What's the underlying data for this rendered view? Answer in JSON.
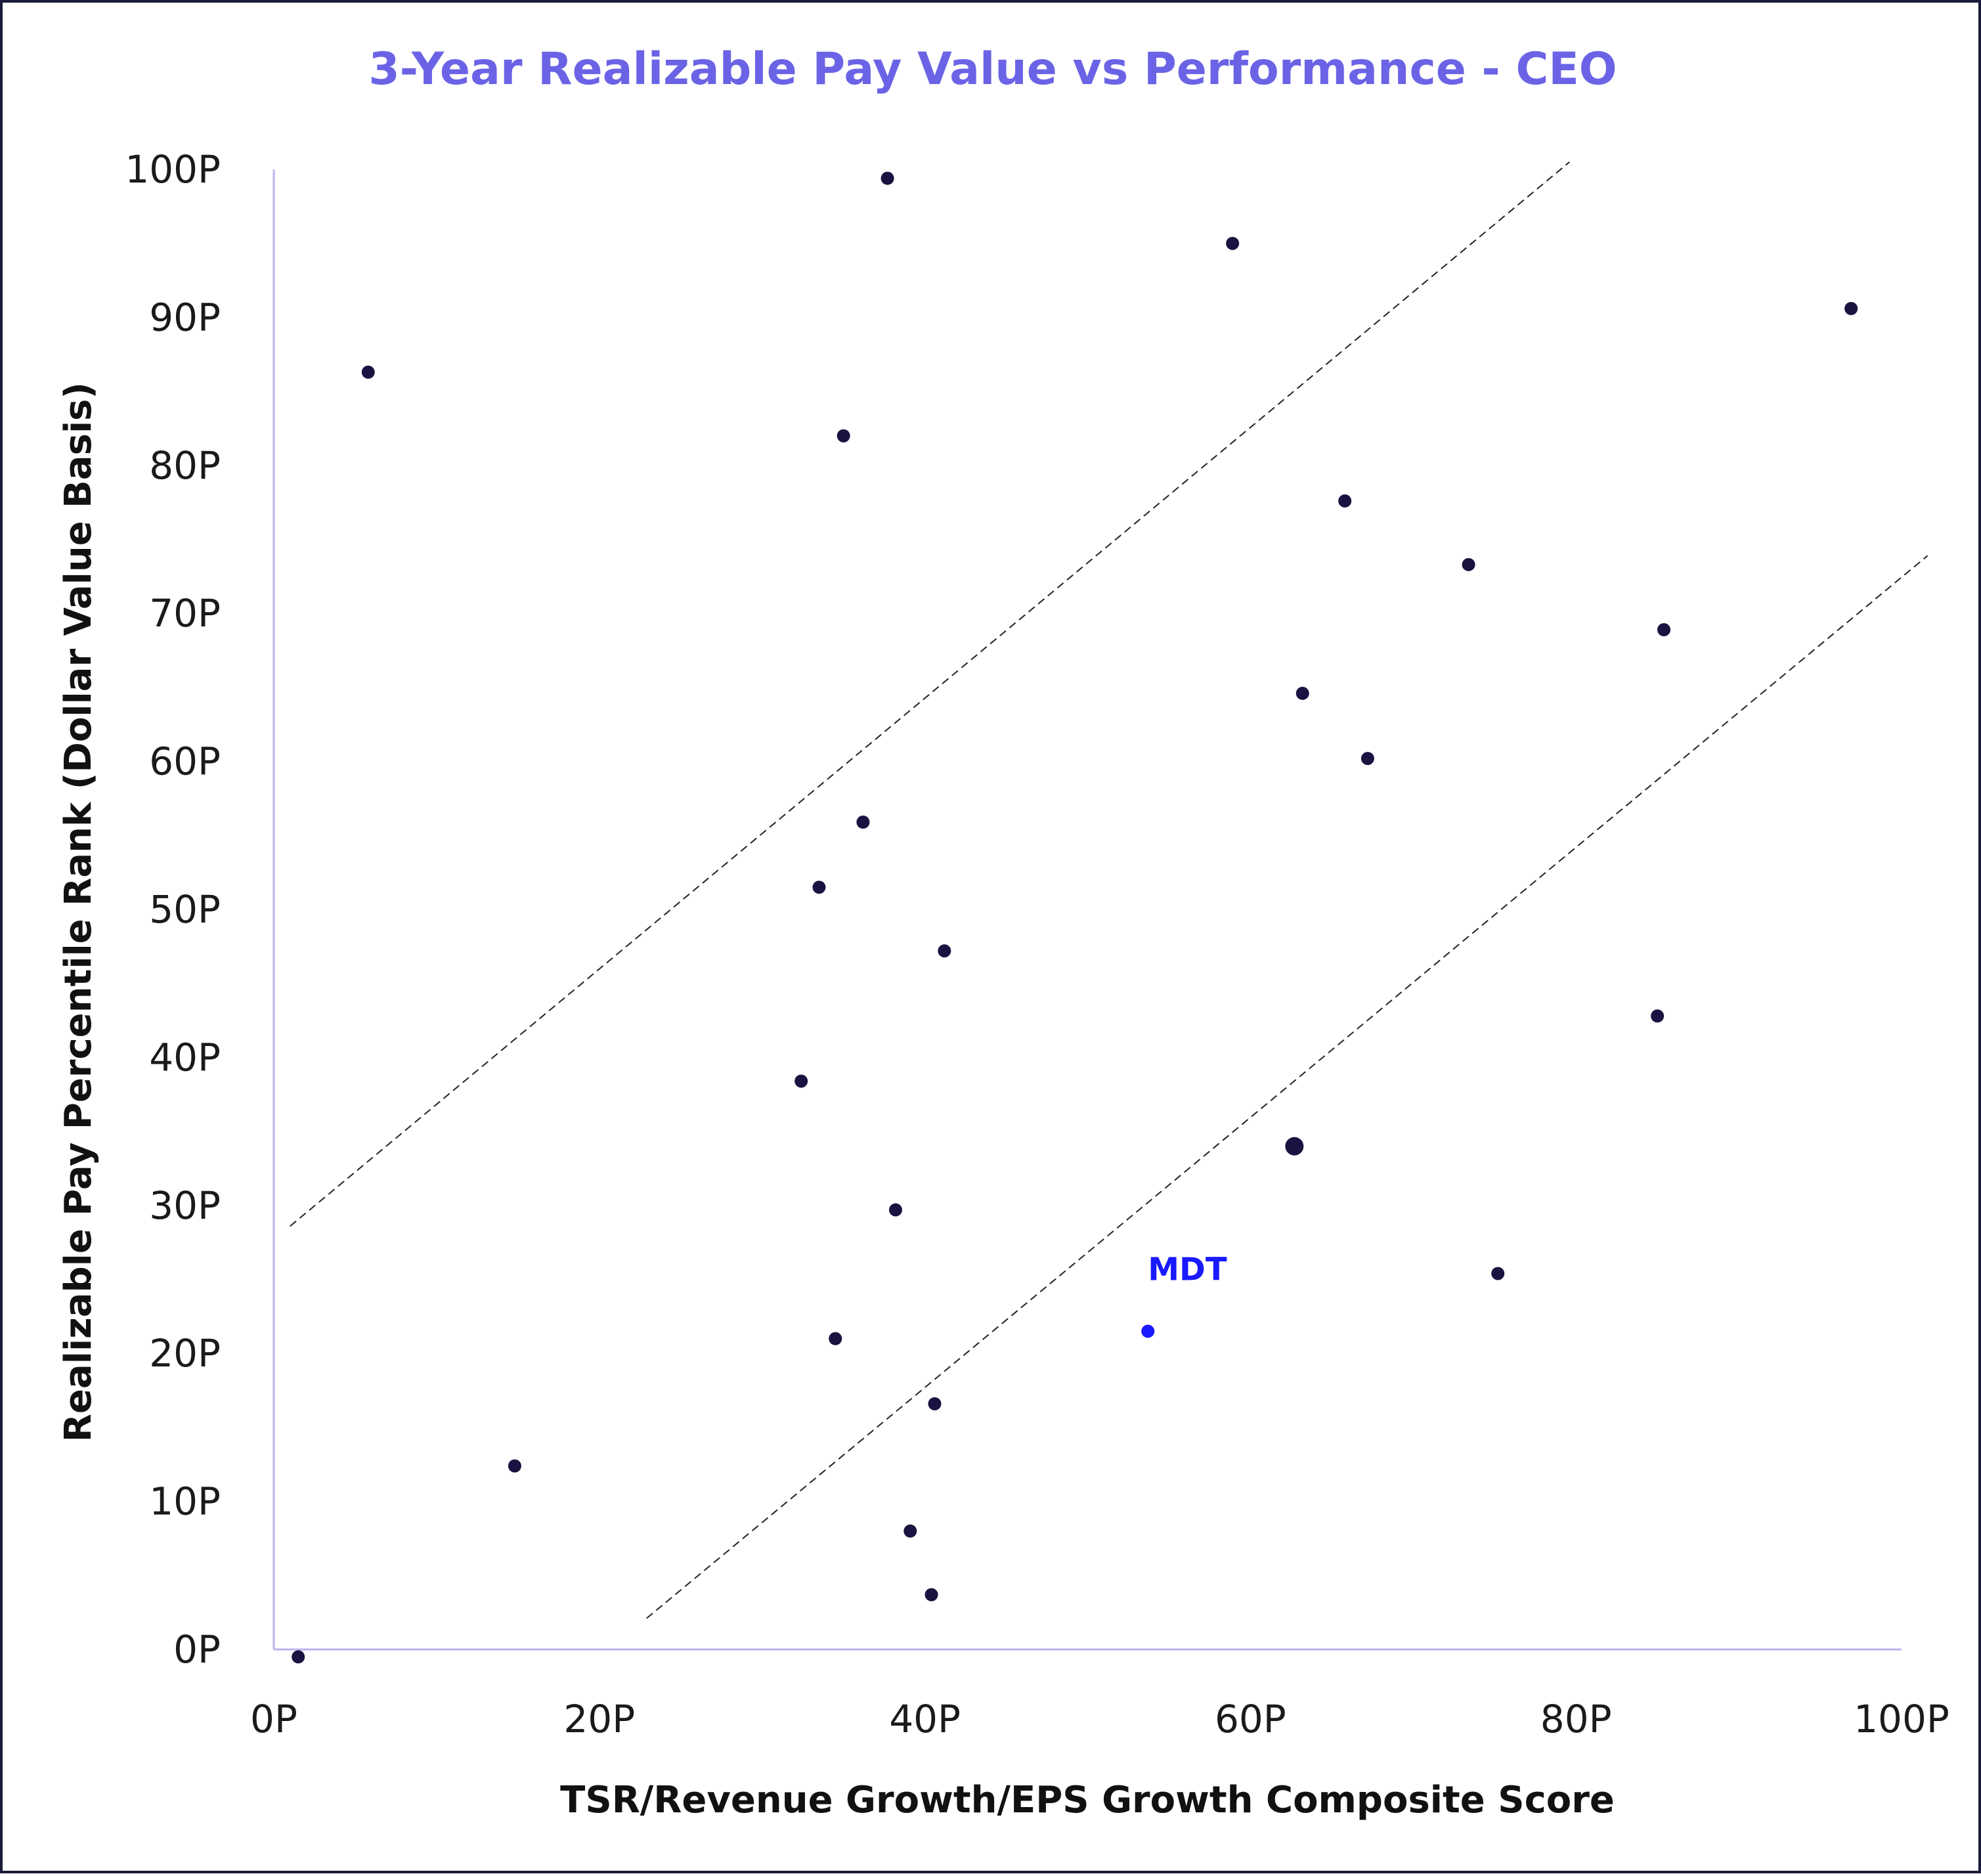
{
  "chart_data": {
    "type": "scatter",
    "title": "3-Year Realizable Pay Value vs Performance - CEO",
    "xlabel": "TSR/Revenue Growth/EPS Growth Composite Score",
    "ylabel": "Realizable Pay Percentile Rank (Dollar Value Basis)",
    "xlim": [
      0,
      100
    ],
    "ylim": [
      0,
      100
    ],
    "x_ticks": [
      0,
      20,
      40,
      60,
      80,
      100
    ],
    "y_ticks": [
      0,
      10,
      20,
      30,
      40,
      50,
      60,
      70,
      80,
      90,
      100
    ],
    "x_tick_labels": [
      "0P",
      "20P",
      "40P",
      "60P",
      "80P",
      "100P"
    ],
    "y_tick_labels": [
      "0P",
      "10P",
      "20P",
      "30P",
      "40P",
      "50P",
      "60P",
      "70P",
      "80P",
      "90P",
      "100P"
    ],
    "grid": false,
    "legend": "none",
    "colors": {
      "point": "#1a1240",
      "highlight": "#1a1aff",
      "title": "#6b63e6",
      "axis": "#b8b4ee",
      "band_line": "#222222"
    },
    "points": [
      {
        "x": 1.5,
        "y": -0.5
      },
      {
        "x": 5.8,
        "y": 86.3
      },
      {
        "x": 14.8,
        "y": 12.4
      },
      {
        "x": 32.4,
        "y": 38.4
      },
      {
        "x": 33.5,
        "y": 51.5
      },
      {
        "x": 34.5,
        "y": 21.0
      },
      {
        "x": 35.0,
        "y": 82.0
      },
      {
        "x": 36.2,
        "y": 55.9
      },
      {
        "x": 37.7,
        "y": 99.4
      },
      {
        "x": 38.2,
        "y": 29.7
      },
      {
        "x": 39.1,
        "y": 8.0
      },
      {
        "x": 40.4,
        "y": 3.7
      },
      {
        "x": 40.6,
        "y": 16.6
      },
      {
        "x": 41.2,
        "y": 47.2
      },
      {
        "x": 58.9,
        "y": 95.0
      },
      {
        "x": 62.7,
        "y": 34.0,
        "large": true
      },
      {
        "x": 63.2,
        "y": 64.6
      },
      {
        "x": 65.8,
        "y": 77.6
      },
      {
        "x": 67.2,
        "y": 60.2
      },
      {
        "x": 73.4,
        "y": 73.3
      },
      {
        "x": 75.2,
        "y": 25.4
      },
      {
        "x": 85.0,
        "y": 42.8
      },
      {
        "x": 85.4,
        "y": 68.9
      },
      {
        "x": 96.9,
        "y": 90.6
      }
    ],
    "highlight": {
      "label": "MDT",
      "x": 53.7,
      "y": 21.5
    },
    "bands": [
      {
        "x1": 1.0,
        "y1": 28.6,
        "x2": 79.6,
        "y2": 100.5
      },
      {
        "x1": 22.9,
        "y1": 2.1,
        "x2": 101.6,
        "y2": 73.9
      }
    ]
  }
}
